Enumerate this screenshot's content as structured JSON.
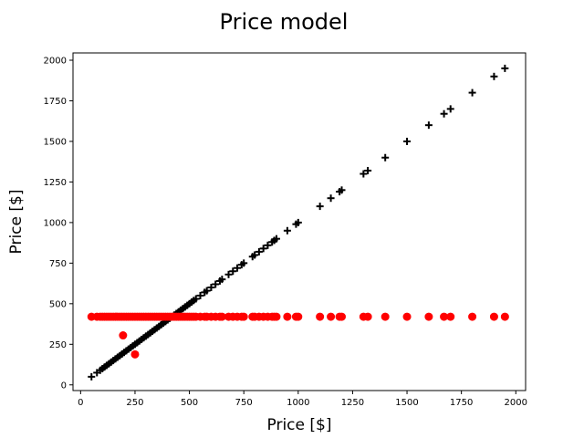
{
  "chart_data": {
    "type": "scatter",
    "title": "Price model",
    "xlabel": "Price [$]",
    "ylabel": "Price [$]",
    "xlim": [
      -35,
      2045
    ],
    "ylim": [
      -35,
      2045
    ],
    "xticks": [
      0,
      250,
      500,
      750,
      1000,
      1250,
      1500,
      1750,
      2000
    ],
    "yticks": [
      0,
      250,
      500,
      750,
      1000,
      1250,
      1500,
      1750,
      2000
    ],
    "grid": false,
    "series": [
      {
        "marker": "plus",
        "color": "#000000",
        "points": [
          [
            50,
            50
          ],
          [
            75,
            75
          ],
          [
            90,
            90
          ],
          [
            100,
            100
          ],
          [
            110,
            110
          ],
          [
            120,
            120
          ],
          [
            130,
            130
          ],
          [
            140,
            140
          ],
          [
            150,
            150
          ],
          [
            160,
            160
          ],
          [
            170,
            170
          ],
          [
            180,
            180
          ],
          [
            190,
            190
          ],
          [
            200,
            200
          ],
          [
            210,
            210
          ],
          [
            220,
            220
          ],
          [
            230,
            230
          ],
          [
            240,
            240
          ],
          [
            250,
            250
          ],
          [
            260,
            260
          ],
          [
            270,
            270
          ],
          [
            280,
            280
          ],
          [
            290,
            290
          ],
          [
            300,
            300
          ],
          [
            310,
            310
          ],
          [
            320,
            320
          ],
          [
            330,
            330
          ],
          [
            340,
            340
          ],
          [
            350,
            350
          ],
          [
            360,
            360
          ],
          [
            370,
            370
          ],
          [
            380,
            380
          ],
          [
            390,
            390
          ],
          [
            400,
            400
          ],
          [
            410,
            410
          ],
          [
            420,
            420
          ],
          [
            430,
            430
          ],
          [
            440,
            440
          ],
          [
            450,
            450
          ],
          [
            460,
            460
          ],
          [
            470,
            470
          ],
          [
            480,
            480
          ],
          [
            490,
            490
          ],
          [
            500,
            500
          ],
          [
            510,
            510
          ],
          [
            520,
            520
          ],
          [
            530,
            530
          ],
          [
            550,
            550
          ],
          [
            570,
            570
          ],
          [
            580,
            580
          ],
          [
            600,
            600
          ],
          [
            620,
            620
          ],
          [
            640,
            640
          ],
          [
            650,
            650
          ],
          [
            680,
            680
          ],
          [
            700,
            700
          ],
          [
            720,
            720
          ],
          [
            740,
            740
          ],
          [
            750,
            750
          ],
          [
            790,
            790
          ],
          [
            800,
            800
          ],
          [
            820,
            820
          ],
          [
            840,
            840
          ],
          [
            860,
            860
          ],
          [
            880,
            880
          ],
          [
            890,
            890
          ],
          [
            900,
            900
          ],
          [
            950,
            950
          ],
          [
            990,
            990
          ],
          [
            1000,
            1000
          ],
          [
            1100,
            1100
          ],
          [
            1150,
            1150
          ],
          [
            1190,
            1190
          ],
          [
            1200,
            1200
          ],
          [
            1300,
            1300
          ],
          [
            1320,
            1320
          ],
          [
            1400,
            1400
          ],
          [
            1500,
            1500
          ],
          [
            1600,
            1600
          ],
          [
            1670,
            1670
          ],
          [
            1700,
            1700
          ],
          [
            1800,
            1800
          ],
          [
            1900,
            1900
          ],
          [
            1950,
            1950
          ]
        ]
      },
      {
        "marker": "circle",
        "color": "#ff0000",
        "points": [
          [
            50,
            420
          ],
          [
            75,
            420
          ],
          [
            90,
            420
          ],
          [
            100,
            420
          ],
          [
            110,
            420
          ],
          [
            120,
            420
          ],
          [
            130,
            420
          ],
          [
            140,
            420
          ],
          [
            150,
            420
          ],
          [
            160,
            420
          ],
          [
            170,
            420
          ],
          [
            180,
            420
          ],
          [
            190,
            420
          ],
          [
            200,
            420
          ],
          [
            210,
            420
          ],
          [
            220,
            420
          ],
          [
            230,
            420
          ],
          [
            240,
            420
          ],
          [
            250,
            420
          ],
          [
            260,
            420
          ],
          [
            270,
            420
          ],
          [
            280,
            420
          ],
          [
            290,
            420
          ],
          [
            300,
            420
          ],
          [
            310,
            420
          ],
          [
            320,
            420
          ],
          [
            330,
            420
          ],
          [
            340,
            420
          ],
          [
            350,
            420
          ],
          [
            360,
            420
          ],
          [
            370,
            420
          ],
          [
            380,
            420
          ],
          [
            390,
            420
          ],
          [
            400,
            420
          ],
          [
            410,
            420
          ],
          [
            420,
            420
          ],
          [
            430,
            420
          ],
          [
            440,
            420
          ],
          [
            450,
            420
          ],
          [
            460,
            420
          ],
          [
            470,
            420
          ],
          [
            480,
            420
          ],
          [
            490,
            420
          ],
          [
            500,
            420
          ],
          [
            510,
            420
          ],
          [
            520,
            420
          ],
          [
            530,
            420
          ],
          [
            550,
            420
          ],
          [
            570,
            420
          ],
          [
            580,
            420
          ],
          [
            600,
            420
          ],
          [
            620,
            420
          ],
          [
            640,
            420
          ],
          [
            650,
            420
          ],
          [
            680,
            420
          ],
          [
            700,
            420
          ],
          [
            720,
            420
          ],
          [
            740,
            420
          ],
          [
            750,
            420
          ],
          [
            790,
            420
          ],
          [
            800,
            420
          ],
          [
            820,
            420
          ],
          [
            840,
            420
          ],
          [
            860,
            420
          ],
          [
            880,
            420
          ],
          [
            890,
            420
          ],
          [
            900,
            420
          ],
          [
            950,
            420
          ],
          [
            990,
            420
          ],
          [
            1000,
            420
          ],
          [
            1100,
            420
          ],
          [
            1150,
            420
          ],
          [
            1190,
            420
          ],
          [
            1200,
            420
          ],
          [
            1300,
            420
          ],
          [
            1320,
            420
          ],
          [
            1400,
            420
          ],
          [
            1500,
            420
          ],
          [
            1600,
            420
          ],
          [
            1670,
            420
          ],
          [
            1700,
            420
          ],
          [
            1800,
            420
          ],
          [
            1900,
            420
          ],
          [
            1950,
            420
          ],
          [
            195,
            305
          ],
          [
            250,
            188
          ]
        ]
      }
    ]
  }
}
